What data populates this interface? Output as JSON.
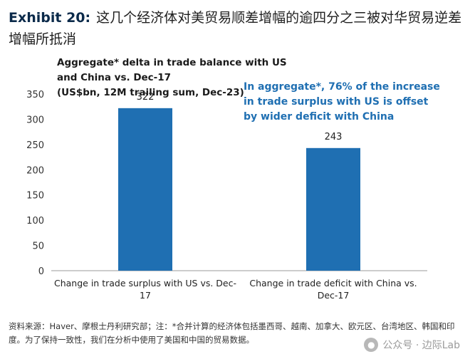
{
  "exhibit": {
    "number": "Exhibit 20:",
    "title": "这几个经济体对美贸易顺差增幅的逾四分之三被对华贸易逆差增幅所抵消"
  },
  "chart_data": {
    "type": "bar",
    "title_line1": "Aggregate* delta in trade balance with US and China vs. Dec-17",
    "title_line2": "(US$bn, 12M trailing sum, Dec-23)",
    "categories": [
      [
        "Change in trade surplus with US vs. Dec-",
        "17"
      ],
      [
        "Change in trade deficit with China vs.",
        "Dec-17"
      ]
    ],
    "values": [
      322,
      243
    ],
    "value_labels": [
      "322",
      "243"
    ],
    "ylim": [
      0,
      350
    ],
    "yticks": [
      0,
      50,
      100,
      150,
      200,
      250,
      300,
      350
    ],
    "bar_color": "#1f6fb2",
    "grid": false,
    "annotation": [
      "In aggregate*, 76% of the increase",
      "in trade surplus with US is offset",
      "by wider deficit with China"
    ]
  },
  "source": "资料来源：Haver、摩根士丹利研究部；注：*合并计算的经济体包括墨西哥、越南、加拿大、欧元区、台湾地区、韩国和印度。为了保持一致性，我们在分析中使用了美国和中国的贸易数据。",
  "watermark": {
    "icon": "wechat-icon",
    "text": "公众号 · 边际Lab"
  }
}
